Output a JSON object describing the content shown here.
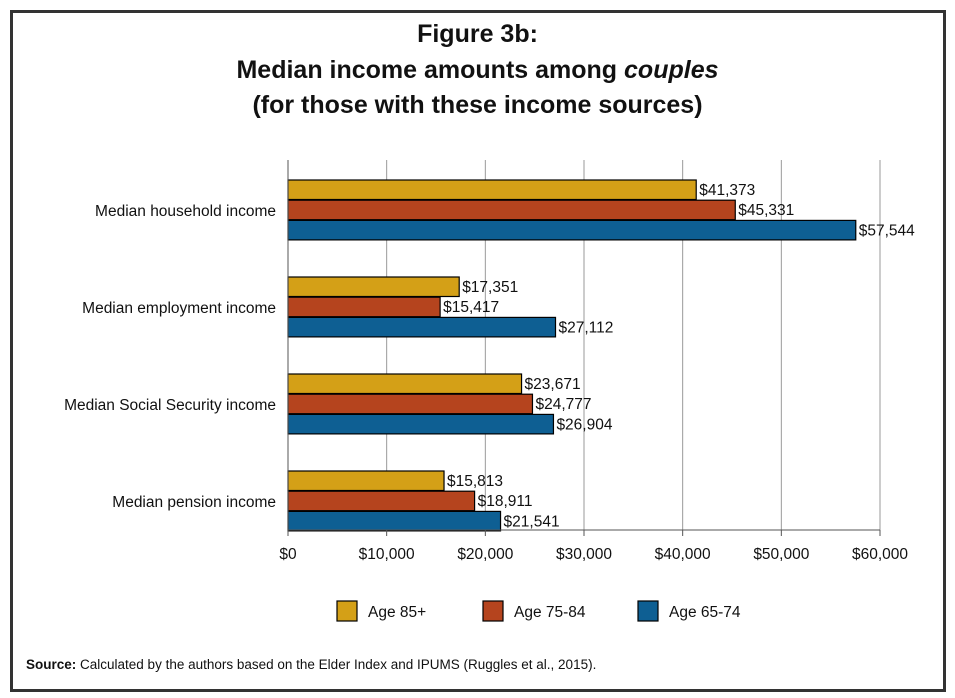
{
  "title_line1": "Figure 3b:",
  "title_line2_prefix": "Median income amounts among ",
  "title_line2_emph": "couples",
  "title_line3": "(for those with these income sources)",
  "source_label": "Source:",
  "source_text": " Calculated by the authors based on the Elder Index and IPUMS (Ruggles et al., 2015).",
  "chart_data": {
    "type": "bar",
    "orientation": "horizontal",
    "categories": [
      "Median household income",
      "Median employment income",
      "Median Social Security income",
      "Median pension income"
    ],
    "series": [
      {
        "name": "Age 85+",
        "color": "#D4A017",
        "values": [
          41373,
          17351,
          23671,
          15813
        ],
        "labels": [
          "$41,373",
          "$17,351",
          "$23,671",
          "$15,813"
        ]
      },
      {
        "name": "Age 75-84",
        "color": "#B5441E",
        "values": [
          45331,
          15417,
          24777,
          18911
        ],
        "labels": [
          "$45,331",
          "$15,417",
          "$24,777",
          "$18,911"
        ]
      },
      {
        "name": "Age 65-74",
        "color": "#0E5F93",
        "values": [
          57544,
          27112,
          26904,
          21541
        ],
        "labels": [
          "$57,544",
          "$27,112",
          "$26,904",
          "$21,541"
        ]
      }
    ],
    "xlim": [
      0,
      60000
    ],
    "xticks": [
      0,
      10000,
      20000,
      30000,
      40000,
      50000,
      60000
    ],
    "xtick_labels": [
      "$0",
      "$10,000",
      "$20,000",
      "$30,000",
      "$40,000",
      "$50,000",
      "$60,000"
    ],
    "grid": true,
    "legend_position": "bottom"
  }
}
